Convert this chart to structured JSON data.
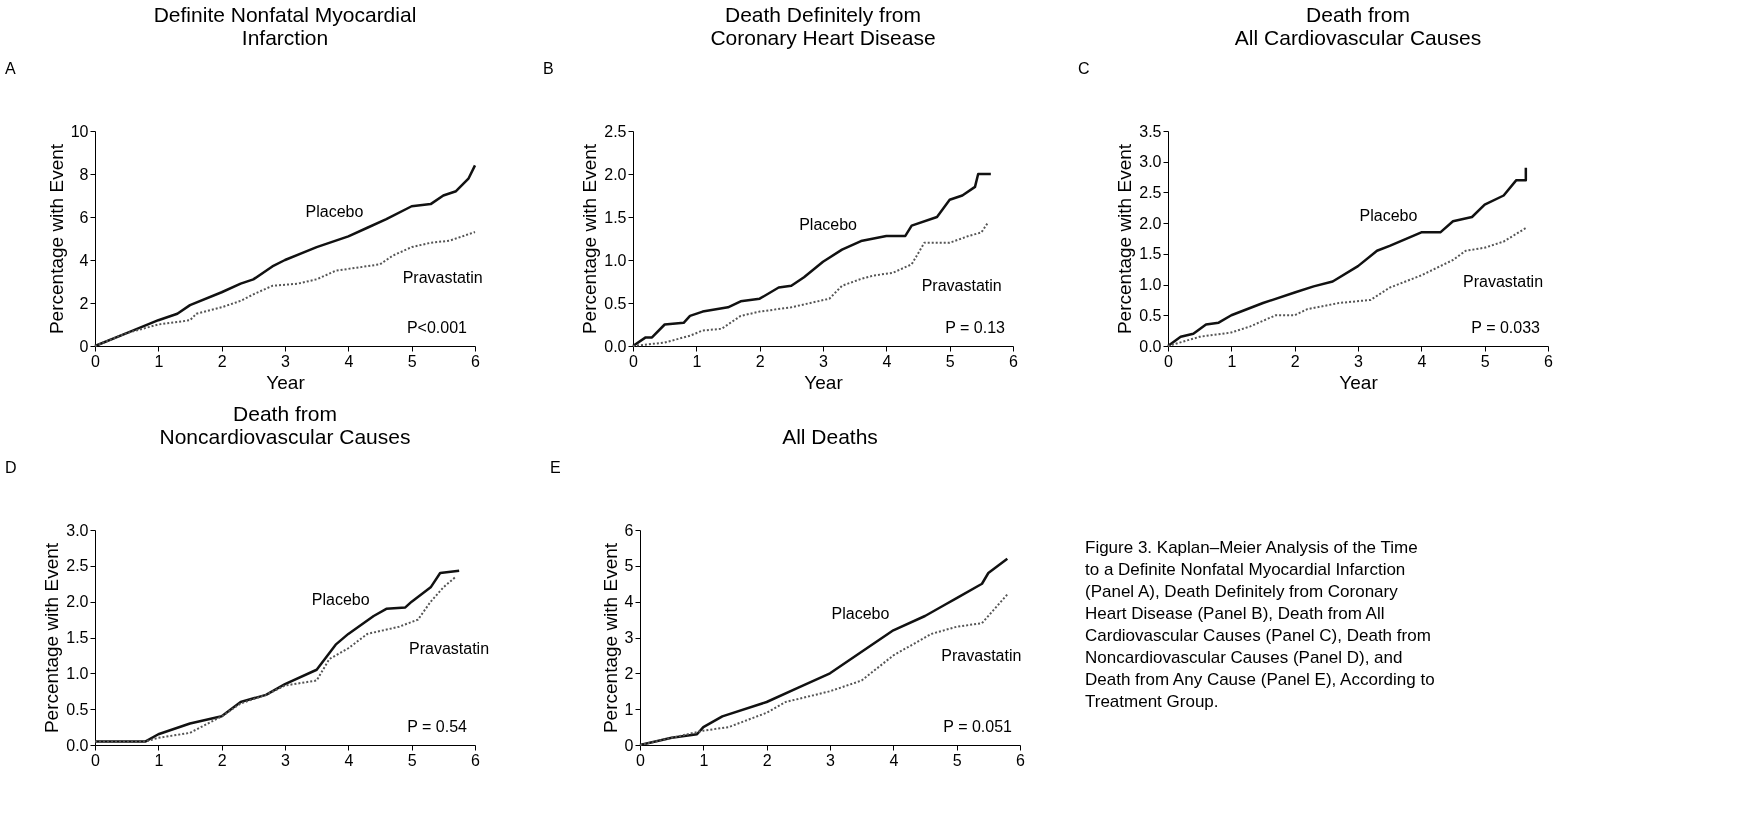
{
  "chart_data": [
    {
      "type": "line",
      "title": "Definite Nonfatal Myocardial\nInfarction",
      "xlabel": "Year",
      "ylabel": "Percentage with Event",
      "annotations": [
        "A",
        "P<0.001"
      ],
      "xlim": [
        0,
        6
      ],
      "ylim": [
        0,
        10
      ],
      "xticks": [
        0,
        1,
        2,
        3,
        4,
        5,
        6
      ],
      "yticks": [
        0,
        2,
        4,
        6,
        8,
        10
      ],
      "series": [
        {
          "name": "Placebo",
          "color": "#111111",
          "line_style": "solid",
          "x": [
            0,
            0.5,
            1,
            1.3,
            1.5,
            2,
            2.3,
            2.5,
            2.8,
            3,
            3.5,
            4,
            4.3,
            4.6,
            5,
            5.3,
            5.5,
            5.7,
            5.9,
            6
          ],
          "values": [
            0,
            0.6,
            1.2,
            1.5,
            1.9,
            2.5,
            2.9,
            3.1,
            3.7,
            4.0,
            4.6,
            5.1,
            5.5,
            5.9,
            6.5,
            6.6,
            7.0,
            7.2,
            7.8,
            8.4
          ]
        },
        {
          "name": "Pravastatin",
          "color": "#555555",
          "line_style": "dotted",
          "x": [
            0,
            0.5,
            1,
            1.5,
            1.6,
            2,
            2.3,
            2.5,
            2.8,
            3.2,
            3.5,
            3.8,
            4.5,
            4.7,
            5,
            5.3,
            5.6,
            5.8,
            6
          ],
          "values": [
            0,
            0.6,
            1.0,
            1.2,
            1.5,
            1.8,
            2.1,
            2.4,
            2.8,
            2.9,
            3.1,
            3.5,
            3.8,
            4.2,
            4.6,
            4.8,
            4.9,
            5.1,
            5.3
          ]
        }
      ]
    },
    {
      "type": "line",
      "title": "Death Definitely from\nCoronary Heart Disease",
      "xlabel": "Year",
      "ylabel": "Percentage with Event",
      "annotations": [
        "B",
        "P = 0.13"
      ],
      "xlim": [
        0,
        6
      ],
      "ylim": [
        0,
        2.5
      ],
      "xticks": [
        0,
        1,
        2,
        3,
        4,
        5,
        6
      ],
      "yticks": [
        {
          "value": 0,
          "label": "0.0"
        },
        0.5,
        {
          "value": 1,
          "label": "1.0"
        },
        1.5,
        {
          "value": 2,
          "label": "2.0"
        },
        2.5
      ],
      "series": [
        {
          "name": "Placebo",
          "color": "#111111",
          "line_style": "solid",
          "x": [
            0,
            0.2,
            0.3,
            0.5,
            0.8,
            0.9,
            1.1,
            1.5,
            1.7,
            2,
            2.3,
            2.5,
            2.7,
            3,
            3.3,
            3.6,
            4,
            4.3,
            4.4,
            4.8,
            5,
            5.2,
            5.4,
            5.45,
            5.65
          ],
          "values": [
            0,
            0.1,
            0.1,
            0.25,
            0.27,
            0.35,
            0.4,
            0.45,
            0.52,
            0.55,
            0.68,
            0.7,
            0.8,
            0.98,
            1.12,
            1.22,
            1.28,
            1.28,
            1.4,
            1.5,
            1.7,
            1.75,
            1.85,
            2.0,
            2.0
          ]
        },
        {
          "name": "Pravastatin",
          "color": "#555555",
          "line_style": "dotted",
          "x": [
            0,
            0.5,
            0.9,
            1.1,
            1.4,
            1.7,
            2,
            2.5,
            2.8,
            3.1,
            3.3,
            3.6,
            3.8,
            4.1,
            4.4,
            4.6,
            5,
            5.3,
            5.5,
            5.6
          ],
          "values": [
            0,
            0.04,
            0.12,
            0.18,
            0.2,
            0.35,
            0.4,
            0.45,
            0.5,
            0.55,
            0.7,
            0.78,
            0.82,
            0.85,
            0.95,
            1.2,
            1.2,
            1.28,
            1.32,
            1.43
          ]
        }
      ]
    },
    {
      "type": "line",
      "title": "Death from\nAll Cardiovascular Causes",
      "xlabel": "Year",
      "ylabel": "Percentage with Event",
      "annotations": [
        "C",
        "P = 0.033"
      ],
      "xlim": [
        0,
        6
      ],
      "ylim": [
        0,
        3.5
      ],
      "xticks": [
        0,
        1,
        2,
        3,
        4,
        5,
        6
      ],
      "yticks": [
        {
          "value": 0,
          "label": "0.0"
        },
        0.5,
        {
          "value": 1,
          "label": "1.0"
        },
        1.5,
        {
          "value": 2,
          "label": "2.0"
        },
        2.5,
        {
          "value": 3,
          "label": "3.0"
        },
        3.5
      ],
      "series": [
        {
          "name": "Placebo",
          "color": "#111111",
          "line_style": "solid",
          "x": [
            0,
            0.2,
            0.4,
            0.6,
            0.8,
            1,
            1.5,
            2,
            2.3,
            2.6,
            3,
            3.3,
            3.5,
            4,
            4.3,
            4.5,
            4.8,
            5,
            5.3,
            5.5,
            5.65,
            5.65
          ],
          "values": [
            0,
            0.15,
            0.2,
            0.35,
            0.38,
            0.5,
            0.7,
            0.87,
            0.97,
            1.05,
            1.3,
            1.55,
            1.63,
            1.85,
            1.85,
            2.03,
            2.1,
            2.3,
            2.45,
            2.7,
            2.7,
            2.9
          ]
        },
        {
          "name": "Pravastatin",
          "color": "#555555",
          "line_style": "dotted",
          "x": [
            0,
            0.5,
            1,
            1.3,
            1.7,
            2,
            2.2,
            2.7,
            3.2,
            3.5,
            4,
            4.5,
            4.7,
            5,
            5.3,
            5.65
          ],
          "values": [
            0,
            0.15,
            0.22,
            0.32,
            0.5,
            0.5,
            0.6,
            0.7,
            0.75,
            0.95,
            1.15,
            1.4,
            1.55,
            1.6,
            1.7,
            1.92
          ]
        }
      ]
    },
    {
      "type": "line",
      "title": "Death from\nNoncardiovascular Causes",
      "ylabel": "Percentage with Event",
      "annotations": [
        "D",
        "P = 0.54"
      ],
      "xlim": [
        0,
        6
      ],
      "ylim": [
        0,
        3
      ],
      "xticks": [
        0,
        1,
        2,
        3,
        4,
        5,
        6
      ],
      "yticks": [
        {
          "value": 0,
          "label": "0.0"
        },
        0.5,
        {
          "value": 1,
          "label": "1.0"
        },
        1.5,
        {
          "value": 2,
          "label": "2.0"
        },
        2.5,
        {
          "value": 3,
          "label": "3.0"
        }
      ],
      "series": [
        {
          "name": "Placebo",
          "color": "#111111",
          "line_style": "solid",
          "x": [
            0,
            0.8,
            1,
            1.5,
            2,
            2.3,
            2.7,
            3,
            3.5,
            3.8,
            4,
            4.4,
            4.6,
            4.9,
            5,
            5.3,
            5.45,
            5.75
          ],
          "values": [
            0.05,
            0.05,
            0.15,
            0.3,
            0.4,
            0.6,
            0.7,
            0.85,
            1.05,
            1.4,
            1.55,
            1.8,
            1.9,
            1.92,
            2.0,
            2.2,
            2.4,
            2.43
          ]
        },
        {
          "name": "Pravastatin",
          "color": "#555555",
          "line_style": "dotted",
          "x": [
            0,
            0.8,
            1,
            1.5,
            2,
            2.3,
            2.7,
            3,
            3.5,
            3.7,
            4,
            4.3,
            4.8,
            5.1,
            5.3,
            5.5,
            5.7
          ],
          "values": [
            0.05,
            0.05,
            0.1,
            0.17,
            0.4,
            0.58,
            0.7,
            0.83,
            0.9,
            1.2,
            1.35,
            1.55,
            1.65,
            1.75,
            2.0,
            2.2,
            2.35
          ]
        }
      ]
    },
    {
      "type": "line",
      "title": "All Deaths",
      "ylabel": "Percentage with Event",
      "annotations": [
        "E",
        "P = 0.051"
      ],
      "xlim": [
        0,
        6
      ],
      "ylim": [
        0,
        6
      ],
      "xticks": [
        0,
        1,
        2,
        3,
        4,
        5,
        6
      ],
      "yticks": [
        0,
        1,
        2,
        3,
        4,
        5,
        6
      ],
      "series": [
        {
          "name": "Placebo",
          "color": "#111111",
          "line_style": "solid",
          "x": [
            0,
            0.5,
            0.9,
            1,
            1.3,
            2,
            2.5,
            3,
            3.5,
            4,
            4.5,
            4.8,
            5,
            5.4,
            5.5,
            5.8
          ],
          "values": [
            0,
            0.2,
            0.3,
            0.5,
            0.8,
            1.2,
            1.6,
            2.0,
            2.6,
            3.2,
            3.6,
            3.9,
            4.1,
            4.5,
            4.8,
            5.2
          ]
        },
        {
          "name": "Pravastatin",
          "color": "#555555",
          "line_style": "dotted",
          "x": [
            0,
            0.5,
            1,
            1.4,
            2,
            2.3,
            3,
            3.5,
            4,
            4.3,
            4.6,
            5,
            5.4,
            5.6,
            5.8
          ],
          "values": [
            0,
            0.2,
            0.4,
            0.5,
            0.9,
            1.2,
            1.5,
            1.8,
            2.5,
            2.8,
            3.1,
            3.3,
            3.4,
            3.8,
            4.2
          ]
        }
      ]
    },
    {
      "type": "other",
      "annotations": [
        "Figure 3. Kaplan–Meier Analysis of the Time to a Definite Nonfatal Myocardial Infarction (Panel A), Death Definitely from Coronary Heart Disease (Panel B), Death from All Cardiovascular Causes (Panel C), Death from Noncardiovascular Causes (Panel D), and Death from Any Cause (Panel E), According to Treatment Group."
      ]
    }
  ]
}
